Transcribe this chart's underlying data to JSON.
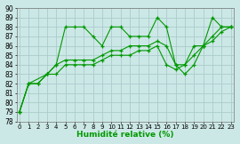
{
  "title": "",
  "xlabel": "Humidité relative (%)",
  "ylabel": "",
  "bg_color": "#cce8e6",
  "grid_color": "#aacccc",
  "line_color": "#009900",
  "xlim": [
    0,
    23
  ],
  "ylim": [
    78,
    90
  ],
  "yticks": [
    78,
    79,
    80,
    81,
    82,
    83,
    84,
    85,
    86,
    87,
    88,
    89,
    90
  ],
  "xticks": [
    0,
    1,
    2,
    3,
    4,
    5,
    6,
    7,
    8,
    9,
    10,
    11,
    12,
    13,
    14,
    15,
    16,
    17,
    18,
    19,
    20,
    21,
    22,
    23
  ],
  "s1_x": [
    0,
    1,
    3,
    4,
    5,
    6,
    7,
    8,
    9,
    10,
    11,
    12,
    13,
    14,
    15,
    16,
    17,
    18,
    19,
    20,
    21,
    22,
    23
  ],
  "s1_y": [
    79,
    82,
    83,
    84,
    88,
    88,
    88,
    87,
    86,
    88,
    88,
    87,
    87,
    87,
    89,
    88,
    84,
    83,
    84,
    86,
    89,
    88,
    88
  ],
  "s2_x": [
    0,
    1,
    2,
    3,
    4,
    5,
    6,
    7,
    8,
    9,
    10,
    11,
    12,
    13,
    14,
    15,
    16,
    17,
    18,
    19,
    20,
    21,
    22,
    23
  ],
  "s2_y": [
    79,
    82,
    82,
    83,
    84,
    84.5,
    84.5,
    84.5,
    84.5,
    85,
    85.5,
    85.5,
    86,
    86,
    86,
    86.5,
    86,
    84,
    84,
    86,
    86,
    87,
    88,
    88
  ],
  "s3_x": [
    0,
    1,
    2,
    3,
    4,
    5,
    6,
    7,
    8,
    9,
    10,
    11,
    12,
    13,
    14,
    15,
    16,
    17,
    18,
    19,
    20,
    21,
    22,
    23
  ],
  "s3_y": [
    79,
    82,
    82,
    83,
    83,
    84,
    84,
    84,
    84,
    84.5,
    85,
    85,
    85,
    85.5,
    85.5,
    86,
    84,
    83.5,
    84,
    85,
    86,
    86.5,
    87.5,
    88
  ]
}
